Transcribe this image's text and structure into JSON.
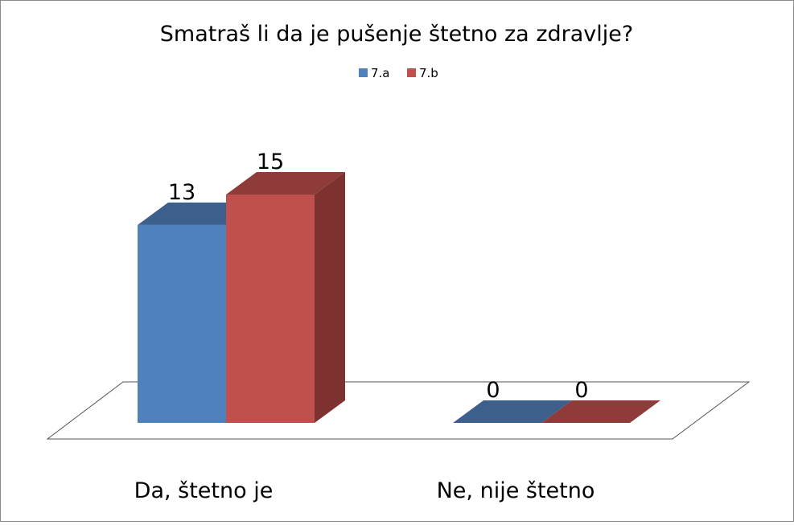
{
  "chart_data": {
    "type": "bar",
    "subtype": "3d-clustered-column",
    "title": "Smatraš li da je pušenje štetno za zdravlje?",
    "categories": [
      "Da, štetno je",
      "Ne, nije štetno"
    ],
    "series": [
      {
        "name": "7.a",
        "values": [
          13,
          0
        ]
      },
      {
        "name": "7.b",
        "values": [
          15,
          0
        ]
      }
    ],
    "data_labels": [
      [
        "13",
        "0"
      ],
      [
        "15",
        "0"
      ]
    ],
    "ylim": [
      0,
      15
    ],
    "grid": false,
    "legend_position": "top",
    "xlabel": "",
    "ylabel": ""
  },
  "colors": {
    "series": [
      {
        "front": "#4f81bd",
        "top": "#3c5f8b",
        "side": "#37577f"
      },
      {
        "front": "#c0504d",
        "top": "#8e3b39",
        "side": "#7d3230"
      }
    ],
    "floor_line": "#555555"
  }
}
